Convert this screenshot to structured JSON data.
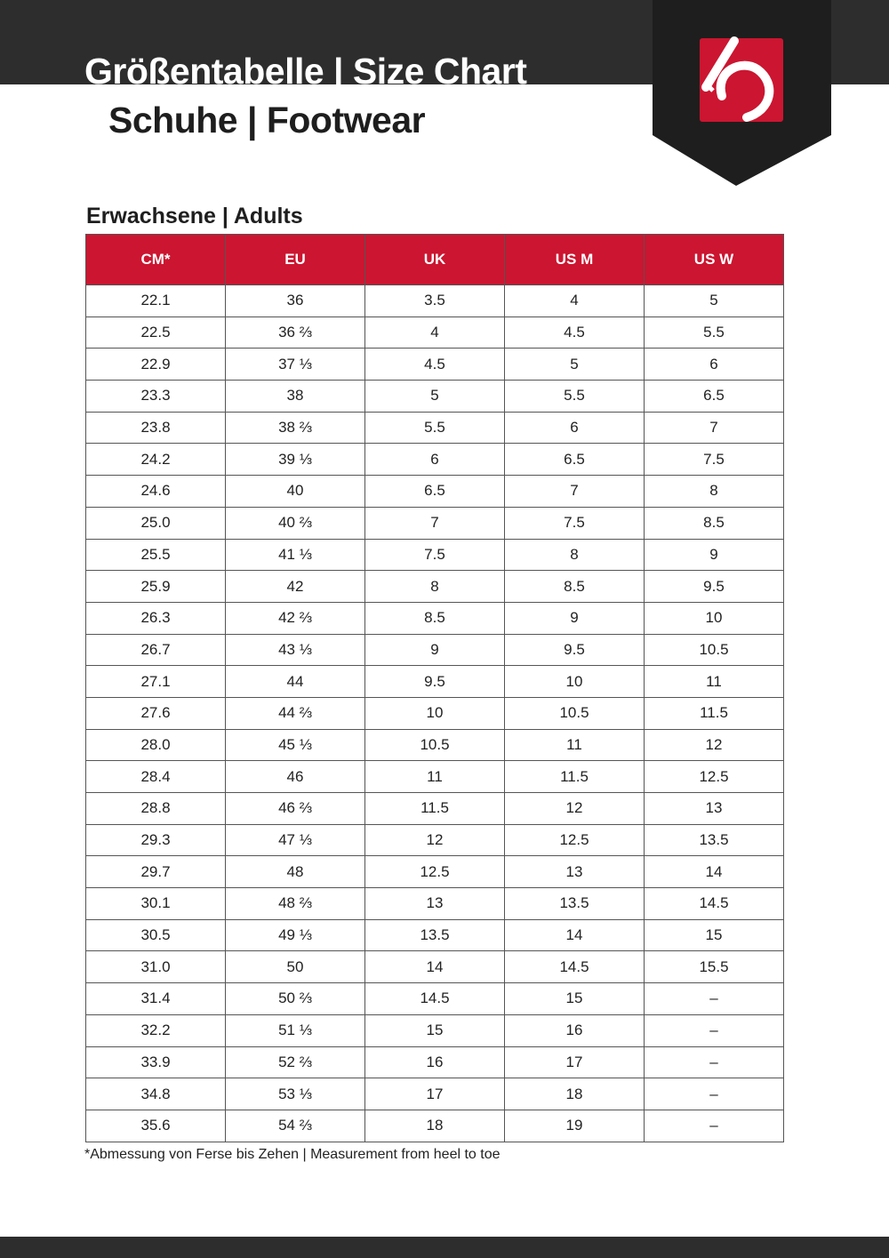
{
  "header": {
    "title": "Größentabelle | Size Chart",
    "subtitle": "Schuhe | Footwear",
    "logo_icon": "five-ten-logo",
    "brand_color": "#cc1530"
  },
  "section": {
    "title": "Erwachsene | Adults"
  },
  "table": {
    "columns": [
      "CM*",
      "EU",
      "UK",
      "US M",
      "US W"
    ],
    "rows": [
      [
        "22.1",
        "36",
        "3.5",
        "4",
        "5"
      ],
      [
        "22.5",
        "36 ⅔",
        "4",
        "4.5",
        "5.5"
      ],
      [
        "22.9",
        "37 ⅓",
        "4.5",
        "5",
        "6"
      ],
      [
        "23.3",
        "38",
        "5",
        "5.5",
        "6.5"
      ],
      [
        "23.8",
        "38 ⅔",
        "5.5",
        "6",
        "7"
      ],
      [
        "24.2",
        "39 ⅓",
        "6",
        "6.5",
        "7.5"
      ],
      [
        "24.6",
        "40",
        "6.5",
        "7",
        "8"
      ],
      [
        "25.0",
        "40 ⅔",
        "7",
        "7.5",
        "8.5"
      ],
      [
        "25.5",
        "41 ⅓",
        "7.5",
        "8",
        "9"
      ],
      [
        "25.9",
        "42",
        "8",
        "8.5",
        "9.5"
      ],
      [
        "26.3",
        "42 ⅔",
        "8.5",
        "9",
        "10"
      ],
      [
        "26.7",
        "43 ⅓",
        "9",
        "9.5",
        "10.5"
      ],
      [
        "27.1",
        "44",
        "9.5",
        "10",
        "11"
      ],
      [
        "27.6",
        "44 ⅔",
        "10",
        "10.5",
        "11.5"
      ],
      [
        "28.0",
        "45 ⅓",
        "10.5",
        "11",
        "12"
      ],
      [
        "28.4",
        "46",
        "11",
        "11.5",
        "12.5"
      ],
      [
        "28.8",
        "46 ⅔",
        "11.5",
        "12",
        "13"
      ],
      [
        "29.3",
        "47 ⅓",
        "12",
        "12.5",
        "13.5"
      ],
      [
        "29.7",
        "48",
        "12.5",
        "13",
        "14"
      ],
      [
        "30.1",
        "48 ⅔",
        "13",
        "13.5",
        "14.5"
      ],
      [
        "30.5",
        "49 ⅓",
        "13.5",
        "14",
        "15"
      ],
      [
        "31.0",
        "50",
        "14",
        "14.5",
        "15.5"
      ],
      [
        "31.4",
        "50 ⅔",
        "14.5",
        "15",
        "–"
      ],
      [
        "32.2",
        "51 ⅓",
        "15",
        "16",
        "–"
      ],
      [
        "33.9",
        "52 ⅔",
        "16",
        "17",
        "–"
      ],
      [
        "34.8",
        "53 ⅓",
        "17",
        "18",
        "–"
      ],
      [
        "35.6",
        "54 ⅔",
        "18",
        "19",
        "–"
      ]
    ]
  },
  "footnote": "*Abmessung von Ferse bis Zehen | Measurement from heel to toe"
}
